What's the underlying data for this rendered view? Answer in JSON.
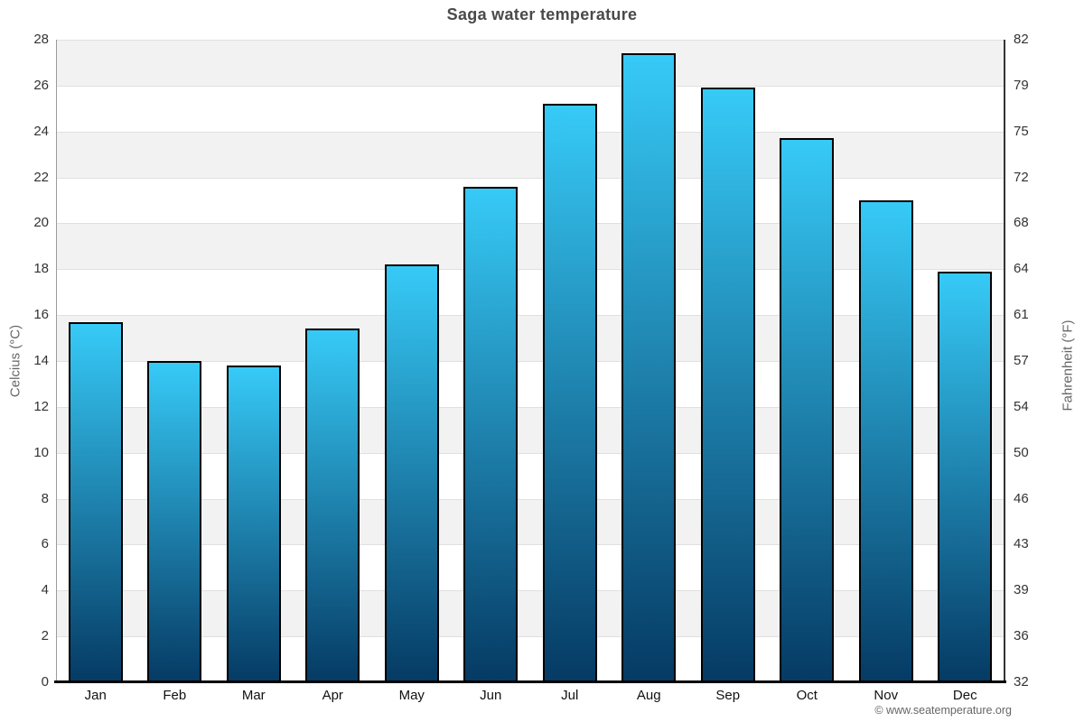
{
  "chart_data": {
    "type": "bar",
    "title": "Saga water temperature",
    "categories": [
      "Jan",
      "Feb",
      "Mar",
      "Apr",
      "May",
      "Jun",
      "Jul",
      "Aug",
      "Sep",
      "Oct",
      "Nov",
      "Dec"
    ],
    "values": [
      15.7,
      14.0,
      13.8,
      15.4,
      18.2,
      21.6,
      25.2,
      27.4,
      25.9,
      23.7,
      21.0,
      17.9
    ],
    "unit": "°C",
    "ylabel_left": "Celcius (°C)",
    "ylabel_right": "Fahrenheit (°F)",
    "ylim": [
      0,
      28
    ],
    "yticks_left": [
      0,
      2,
      4,
      6,
      8,
      10,
      12,
      14,
      16,
      18,
      20,
      22,
      24,
      26,
      28
    ],
    "yticks_right": [
      32,
      36,
      39,
      43,
      46,
      50,
      54,
      57,
      61,
      64,
      68,
      72,
      75,
      79,
      82
    ],
    "grid": "alternating horizontal bands every 2°C, gridlines at even values",
    "legend": "none",
    "copyright": "© www.seatemperature.org",
    "colors": {
      "bar_gradient_top": "#37caf7",
      "bar_gradient_mid": "#1e82ad",
      "bar_gradient_bottom": "#053a63",
      "bar_border": "#000000",
      "band_gray": "#f2f2f2",
      "gridline": "#e0e0e0",
      "title_text": "#4a4a4a",
      "tick_text": "#333333",
      "axis_label_text": "#666666",
      "copyright_text": "#666666",
      "background": "#ffffff"
    }
  }
}
